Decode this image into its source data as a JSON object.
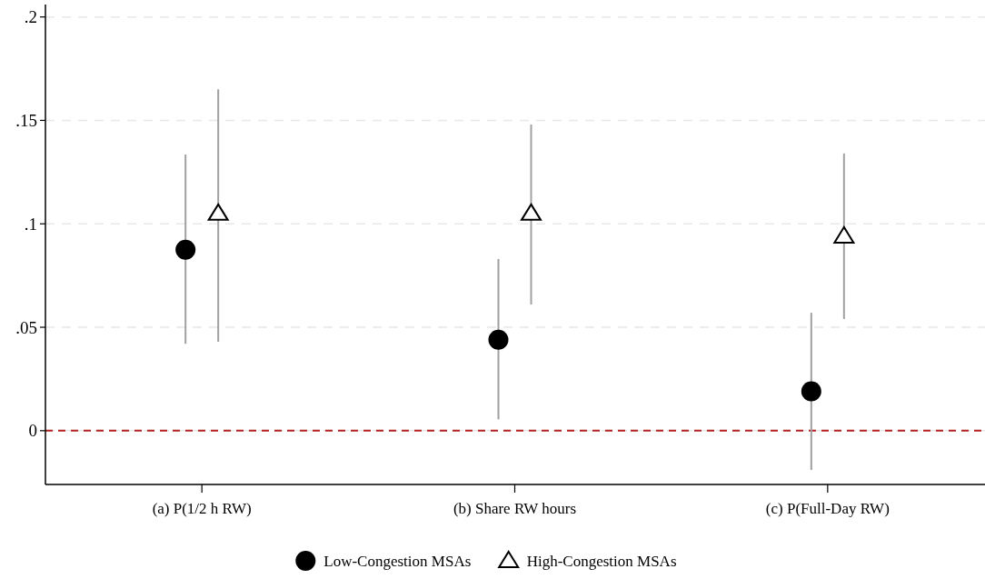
{
  "chart_data": {
    "type": "scatter",
    "categories": [
      "(a) P(1/2 h RW)",
      "(b) Share RW hours",
      "(c) P(Full-Day RW)"
    ],
    "ylim": [
      -0.026,
      0.206
    ],
    "yticks": [
      {
        "value": 0,
        "label": "0"
      },
      {
        "value": 0.05,
        "label": ".05"
      },
      {
        "value": 0.1,
        "label": ".1"
      },
      {
        "value": 0.15,
        "label": ".15"
      },
      {
        "value": 0.2,
        "label": ".2"
      }
    ],
    "grid": "y",
    "legend": "bottom",
    "ref_lines": [
      {
        "axis": "y",
        "value": 0,
        "color": "#b22222",
        "line_style": "dashed"
      }
    ],
    "series": [
      {
        "name": "Low-Congestion MSAs",
        "color": "#000000",
        "marker": "circle",
        "values": [
          0.0875,
          0.044,
          0.019
        ],
        "errors": [
          [
            0.042,
            0.1335
          ],
          [
            0.0055,
            0.083
          ],
          [
            -0.019,
            0.057
          ]
        ]
      },
      {
        "name": "High-Congestion MSAs",
        "color": "#000000",
        "marker": "triangle",
        "values": [
          0.105,
          0.105,
          0.094
        ],
        "errors": [
          [
            0.043,
            0.165
          ],
          [
            0.061,
            0.148
          ],
          [
            0.054,
            0.134
          ]
        ]
      }
    ]
  }
}
